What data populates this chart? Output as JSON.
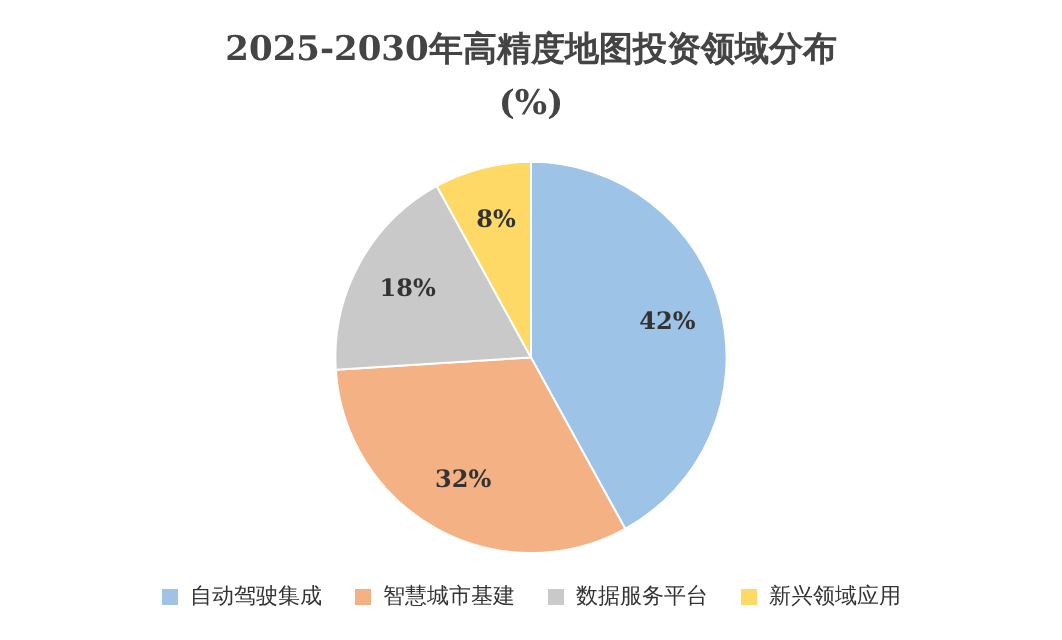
{
  "chart_data": {
    "type": "pie",
    "title": "2025-2030年高精度地图投资领域分布\n(%)",
    "categories": [
      "自动驾驶集成",
      "智慧城市基建",
      "数据服务平台",
      "新兴领域应用"
    ],
    "values": [
      42,
      32,
      18,
      8
    ],
    "colors": [
      "#9dc3e6",
      "#f4b183",
      "#c9c9c9",
      "#ffd966"
    ],
    "value_labels": [
      "42%",
      "32%",
      "18%",
      "8%"
    ],
    "legend": "bottom"
  }
}
